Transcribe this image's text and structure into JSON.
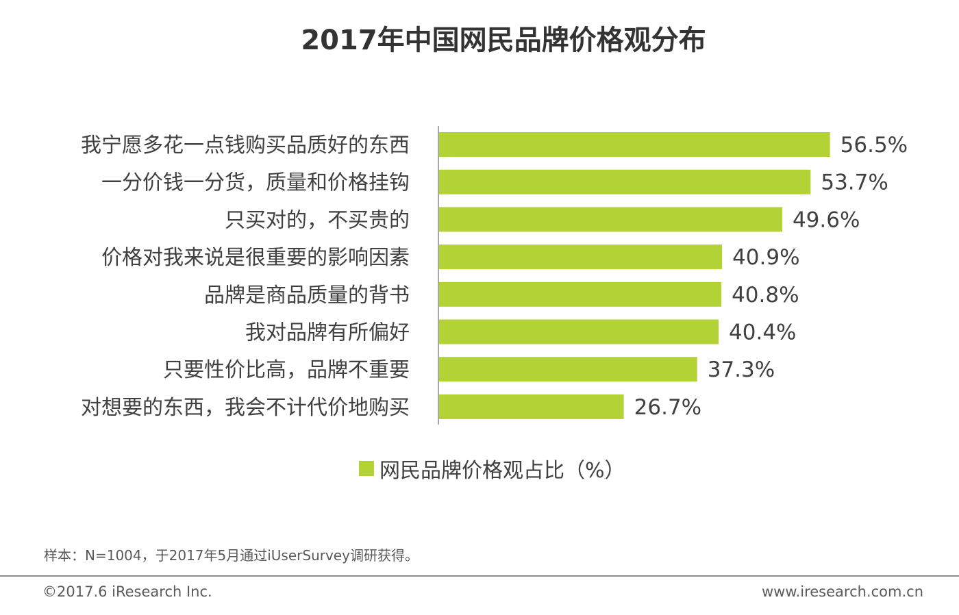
{
  "chart_data": {
    "type": "bar",
    "orientation": "horizontal",
    "title": "2017年中国网民品牌价格观分布",
    "categories": [
      "我宁愿多花一点钱购买品质好的东西",
      "一分价钱一分货，质量和价格挂钩",
      "只买对的，不买贵的",
      "价格对我来说是很重要的影响因素",
      "品牌是商品质量的背书",
      "我对品牌有所偏好",
      "只要性价比高，品牌不重要",
      "对想要的东西，我会不计代价地购买"
    ],
    "series": [
      {
        "name": "网民品牌价格观占比（%）",
        "values": [
          56.5,
          53.7,
          49.6,
          40.9,
          40.8,
          40.4,
          37.3,
          26.7
        ],
        "labels": [
          "56.5%",
          "53.7%",
          "49.6%",
          "40.9%",
          "40.8%",
          "40.4%",
          "37.3%",
          "26.7%"
        ],
        "color": "#b2d235"
      }
    ],
    "xlim": [
      0,
      100
    ],
    "grid": false,
    "legend_position": "bottom"
  },
  "legend": {
    "label": "网民品牌价格观占比（%）",
    "color": "#b2d235"
  },
  "note": "样本：N=1004，于2017年5月通过iUserSurvey调研获得。",
  "footer": {
    "copyright": "©2017.6 iResearch Inc.",
    "website": "www.iresearch.com.cn"
  }
}
